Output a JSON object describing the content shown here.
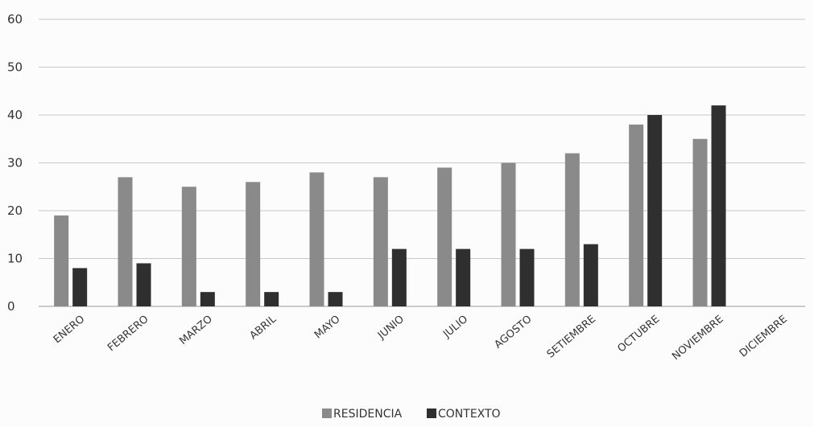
{
  "chart_data": {
    "type": "bar",
    "title": "",
    "xlabel": "",
    "ylabel": "",
    "categories": [
      "ENERO",
      "FEBRERO",
      "MARZO",
      "ABRIL",
      "MAYO",
      "JUNIO",
      "JULIO",
      "AGOSTO",
      "SETIEMBRE",
      "OCTUBRE",
      "NOVIEMBRE",
      "DICIEMBRE"
    ],
    "series": [
      {
        "name": "RESIDENCIA",
        "color": "#8a8a8a",
        "values": [
          19,
          27,
          25,
          26,
          28,
          27,
          29,
          30,
          32,
          38,
          35,
          null
        ]
      },
      {
        "name": "CONTEXTO",
        "color": "#2f2f2f",
        "values": [
          8,
          9,
          3,
          3,
          3,
          12,
          12,
          12,
          13,
          40,
          42,
          null
        ]
      }
    ],
    "ylim": [
      0,
      60
    ],
    "yticks": [
      0,
      10,
      20,
      30,
      40,
      50,
      60
    ],
    "grid": true,
    "legend_position": "bottom"
  }
}
